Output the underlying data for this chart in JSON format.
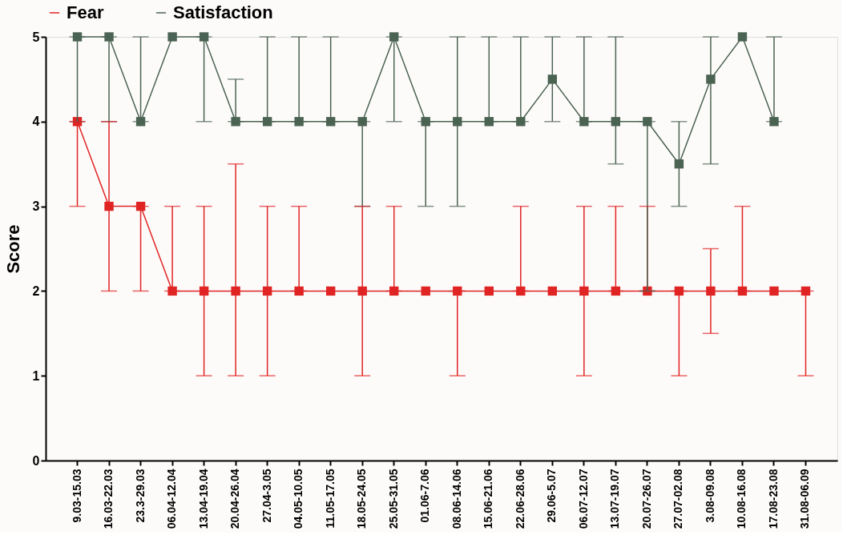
{
  "chart_data": {
    "type": "line",
    "ylabel": "Score",
    "categories": [
      "9.03-15.03",
      "16.03-22.03",
      "23.3-29.03",
      "06.04-12.04",
      "13.04-19.04",
      "20.04-26.04",
      "27.04-3.05",
      "04.05-10.05",
      "11.05-17.05",
      "18.05-24.05",
      "25.05-31.05",
      "01.06-7.06",
      "08.06-14.06",
      "15.06-21.06",
      "22.06-28.06",
      "29.06-5.07",
      "06.07-12.07",
      "13.07-19.07",
      "20.07-26.07",
      "27.07-02.08",
      "3.08-09.08",
      "10.08-16.08",
      "17.08-23.08",
      "31.08-06.09"
    ],
    "series": [
      {
        "name": "Fear",
        "color": "#e02424",
        "values": [
          4,
          3,
          3,
          2,
          2,
          2,
          2,
          2,
          2,
          2,
          2,
          2,
          2,
          2,
          2,
          2,
          2,
          2,
          2,
          2,
          2,
          2,
          2,
          2
        ],
        "errors": [
          [
            3,
            4
          ],
          [
            2,
            4
          ],
          [
            2,
            3
          ],
          [
            2,
            3
          ],
          [
            1,
            3
          ],
          [
            1,
            3.5
          ],
          [
            1,
            3
          ],
          [
            2,
            3
          ],
          null,
          [
            1,
            3
          ],
          [
            2,
            3
          ],
          null,
          [
            1,
            2
          ],
          null,
          [
            2,
            3
          ],
          null,
          [
            1,
            3
          ],
          [
            2,
            3
          ],
          [
            2,
            3
          ],
          [
            1,
            2
          ],
          [
            1.5,
            2.5
          ],
          [
            2,
            3
          ],
          null,
          [
            1,
            2
          ]
        ]
      },
      {
        "name": "Satisfaction",
        "color": "#4b6352",
        "values": [
          5,
          5,
          4,
          5,
          5,
          4,
          4,
          4,
          4,
          4,
          5,
          4,
          4,
          4,
          4,
          4.5,
          4,
          4,
          4,
          3.5,
          4.5,
          5,
          4,
          null
        ],
        "errors": [
          [
            4,
            5
          ],
          [
            4,
            5
          ],
          [
            4,
            5
          ],
          null,
          [
            4,
            5
          ],
          [
            4,
            4.5
          ],
          [
            4,
            5
          ],
          [
            4,
            5
          ],
          [
            4,
            5
          ],
          [
            3,
            4
          ],
          [
            4,
            5
          ],
          [
            3,
            4
          ],
          [
            3,
            5
          ],
          [
            4,
            5
          ],
          [
            4,
            5
          ],
          [
            4,
            5
          ],
          [
            4,
            5
          ],
          [
            3.5,
            5
          ],
          [
            2,
            4
          ],
          [
            3,
            4
          ],
          [
            3.5,
            5
          ],
          null,
          [
            4,
            5
          ],
          null
        ]
      }
    ],
    "ylim": [
      0,
      5
    ],
    "yticks": [
      {
        "value": 0,
        "label": "0"
      },
      {
        "value": 1,
        "label": "1"
      },
      {
        "value": 2,
        "label": "2"
      },
      {
        "value": 3,
        "label": "3"
      },
      {
        "value": 4,
        "label": "4"
      },
      {
        "value": 5,
        "label": "5"
      }
    ],
    "grid": false,
    "legend": "top",
    "marker": "square",
    "line_style": "solid"
  }
}
